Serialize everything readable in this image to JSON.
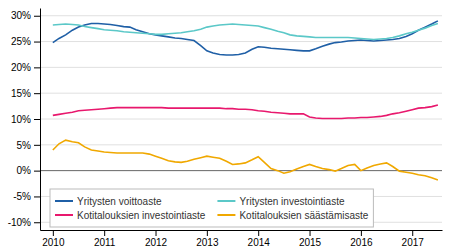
{
  "chart_data": {
    "type": "line",
    "x": [
      2010.0,
      2010.12,
      2010.25,
      2010.38,
      2010.5,
      2010.62,
      2010.75,
      2010.88,
      2011.0,
      2011.12,
      2011.25,
      2011.38,
      2011.5,
      2011.62,
      2011.75,
      2011.88,
      2012.0,
      2012.12,
      2012.25,
      2012.38,
      2012.5,
      2012.62,
      2012.75,
      2012.88,
      2013.0,
      2013.12,
      2013.25,
      2013.38,
      2013.5,
      2013.62,
      2013.75,
      2013.88,
      2014.0,
      2014.12,
      2014.25,
      2014.38,
      2014.5,
      2014.62,
      2014.75,
      2014.88,
      2015.0,
      2015.12,
      2015.25,
      2015.38,
      2015.5,
      2015.62,
      2015.75,
      2015.88,
      2016.0,
      2016.12,
      2016.25,
      2016.38,
      2016.5,
      2016.62,
      2016.75,
      2016.88,
      2017.0,
      2017.12,
      2017.25,
      2017.38,
      2017.5
    ],
    "series": [
      {
        "name": "Yritysten voittoaste",
        "color": "#1F5FA6",
        "values": [
          0.248,
          0.256,
          0.263,
          0.272,
          0.278,
          0.282,
          0.285,
          0.285,
          0.284,
          0.283,
          0.281,
          0.279,
          0.278,
          0.273,
          0.269,
          0.265,
          0.263,
          0.261,
          0.259,
          0.257,
          0.256,
          0.254,
          0.252,
          0.242,
          0.232,
          0.228,
          0.225,
          0.224,
          0.224,
          0.225,
          0.228,
          0.235,
          0.24,
          0.239,
          0.237,
          0.236,
          0.235,
          0.234,
          0.233,
          0.232,
          0.232,
          0.236,
          0.241,
          0.245,
          0.248,
          0.249,
          0.251,
          0.252,
          0.253,
          0.252,
          0.251,
          0.252,
          0.253,
          0.254,
          0.256,
          0.26,
          0.265,
          0.272,
          0.278,
          0.284,
          0.29
        ]
      },
      {
        "name": "Yritysten investointiaste",
        "color": "#5BC8C8",
        "values": [
          0.282,
          0.283,
          0.284,
          0.283,
          0.282,
          0.279,
          0.277,
          0.275,
          0.273,
          0.272,
          0.271,
          0.269,
          0.268,
          0.267,
          0.266,
          0.265,
          0.264,
          0.264,
          0.265,
          0.266,
          0.267,
          0.269,
          0.271,
          0.274,
          0.278,
          0.28,
          0.282,
          0.283,
          0.284,
          0.283,
          0.282,
          0.281,
          0.28,
          0.277,
          0.274,
          0.27,
          0.267,
          0.263,
          0.261,
          0.26,
          0.259,
          0.258,
          0.258,
          0.258,
          0.258,
          0.258,
          0.258,
          0.257,
          0.256,
          0.255,
          0.254,
          0.255,
          0.256,
          0.258,
          0.261,
          0.265,
          0.268,
          0.272,
          0.276,
          0.281,
          0.285
        ]
      },
      {
        "name": "Kotitalouksien investointiaste",
        "color": "#E8186D",
        "values": [
          0.107,
          0.109,
          0.111,
          0.113,
          0.116,
          0.117,
          0.118,
          0.119,
          0.12,
          0.121,
          0.122,
          0.122,
          0.122,
          0.122,
          0.122,
          0.122,
          0.122,
          0.122,
          0.121,
          0.121,
          0.121,
          0.121,
          0.121,
          0.121,
          0.121,
          0.121,
          0.121,
          0.12,
          0.12,
          0.119,
          0.119,
          0.118,
          0.116,
          0.115,
          0.113,
          0.112,
          0.111,
          0.11,
          0.11,
          0.11,
          0.104,
          0.102,
          0.101,
          0.101,
          0.101,
          0.101,
          0.102,
          0.102,
          0.103,
          0.103,
          0.104,
          0.105,
          0.107,
          0.11,
          0.112,
          0.115,
          0.118,
          0.121,
          0.122,
          0.124,
          0.127
        ]
      },
      {
        "name": "Kotitalouksien säästämisaste",
        "color": "#F0A800",
        "values": [
          0.04,
          0.052,
          0.059,
          0.056,
          0.054,
          0.046,
          0.04,
          0.038,
          0.036,
          0.035,
          0.034,
          0.034,
          0.034,
          0.034,
          0.034,
          0.032,
          0.028,
          0.024,
          0.019,
          0.017,
          0.016,
          0.018,
          0.022,
          0.025,
          0.028,
          0.026,
          0.024,
          0.018,
          0.012,
          0.013,
          0.015,
          0.021,
          0.027,
          0.016,
          0.004,
          0.0,
          -0.005,
          -0.002,
          0.003,
          0.008,
          0.012,
          0.008,
          0.004,
          0.002,
          -0.001,
          0.004,
          0.01,
          0.012,
          0.0,
          0.005,
          0.01,
          0.013,
          0.015,
          0.008,
          -0.001,
          -0.003,
          -0.005,
          -0.008,
          -0.01,
          -0.014,
          -0.018
        ]
      }
    ],
    "xlim": [
      2009.75,
      2017.58
    ],
    "xticks": [
      2010,
      2011,
      2012,
      2013,
      2014,
      2015,
      2016,
      2017
    ],
    "ylim": [
      -0.115,
      0.315
    ],
    "yticks": [
      {
        "value": -0.1,
        "label": "-10%"
      },
      {
        "value": -0.05,
        "label": "-5%"
      },
      {
        "value": 0.0,
        "label": "0%"
      },
      {
        "value": 0.05,
        "label": "5%"
      },
      {
        "value": 0.1,
        "label": "10%"
      },
      {
        "value": 0.15,
        "label": "15%"
      },
      {
        "value": 0.2,
        "label": "20%"
      },
      {
        "value": 0.25,
        "label": "25%"
      },
      {
        "value": 0.3,
        "label": "30%"
      }
    ],
    "grid": true,
    "legend": "lower left"
  }
}
